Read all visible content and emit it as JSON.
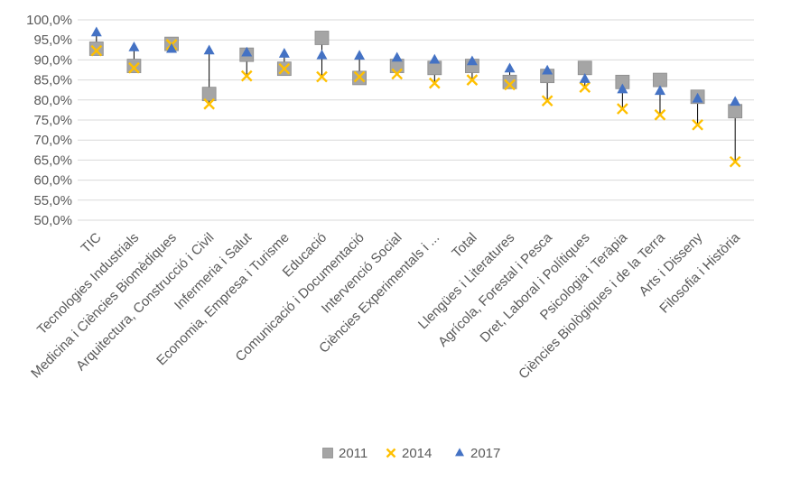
{
  "chart_data": {
    "type": "scatter",
    "title": "",
    "xlabel": "",
    "ylabel": "",
    "ylim": [
      50,
      100
    ],
    "yticks": [
      50,
      55,
      60,
      65,
      70,
      75,
      80,
      85,
      90,
      95,
      100
    ],
    "ytick_labels": [
      "50,0%",
      "55,0%",
      "60,0%",
      "65,0%",
      "70,0%",
      "75,0%",
      "80,0%",
      "85,0%",
      "90,0%",
      "95,0%",
      "100,0%"
    ],
    "grid": true,
    "legend_position": "bottom",
    "categories": [
      "TIC",
      "Tecnologies Industrials",
      "Medicina i Ciències Biomèdiques",
      "Arquitectura, Construcció i Civil",
      "Infermeria i Salut",
      "Economia, Empresa i Turisme",
      "Educació",
      "Comunicació i Documentació",
      "Intervenció Social",
      "Ciències Experimentals i ...",
      "Total",
      "Llengües i Literatures",
      "Agrícola, Forestal i Pesca",
      "Dret, Laboral i Polítiques",
      "Psicologia i Teràpia",
      "Ciències Biològiques i de la Terra",
      "Arts i Disseny",
      "Filosofia i Història"
    ],
    "series": [
      {
        "name": "2011",
        "marker": "square",
        "color": "#A5A5A5",
        "values": [
          92.8,
          88.5,
          94.0,
          81.5,
          91.3,
          87.8,
          95.5,
          85.5,
          88.5,
          88.0,
          88.5,
          84.5,
          86.0,
          88.0,
          84.5,
          85.0,
          80.8,
          77.2
        ]
      },
      {
        "name": "2014",
        "marker": "x",
        "color": "#FFC000",
        "values": [
          92.3,
          88.0,
          93.8,
          79.0,
          86.0,
          87.8,
          85.8,
          85.8,
          86.5,
          84.2,
          85.0,
          83.8,
          79.8,
          83.2,
          77.8,
          76.3,
          73.8,
          64.6
        ]
      },
      {
        "name": "2017",
        "marker": "triangle",
        "color": "#4472C4",
        "values": [
          96.8,
          93.1,
          92.7,
          92.3,
          91.8,
          91.5,
          91.1,
          91.0,
          90.5,
          90.0,
          89.6,
          87.8,
          87.3,
          85.2,
          82.6,
          82.2,
          80.3,
          79.5
        ]
      }
    ],
    "colors": {
      "gridline": "#D9D9D9",
      "axis": "#D9D9D9",
      "hiLoLine": "#000000",
      "text": "#595959"
    }
  }
}
